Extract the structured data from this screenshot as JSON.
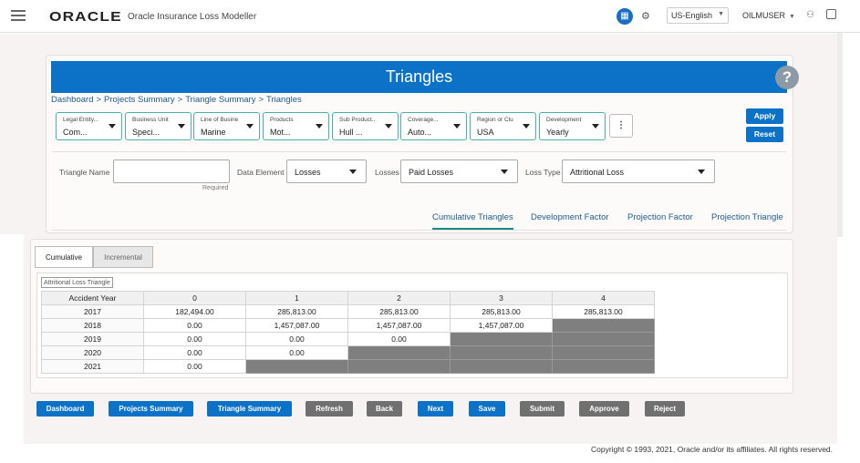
{
  "header": {
    "logo": "ORACLE",
    "app_name": "Oracle Insurance Loss Modeller",
    "language": "US-English",
    "user": "OILMUSER"
  },
  "page": {
    "title": "Triangles",
    "help_glyph": "?",
    "breadcrumb": [
      "Dashboard",
      "Projects Summary",
      "Triangle Summary",
      "Triangles"
    ],
    "breadcrumb_sep": ">"
  },
  "filters": [
    {
      "label": "Legal Entity...",
      "value": "Com..."
    },
    {
      "label": "Business Unit",
      "value": "Speci..."
    },
    {
      "label": "Line of Busine",
      "value": "Marine"
    },
    {
      "label": "Products",
      "value": "Mot..."
    },
    {
      "label": "Sub Product..",
      "value": "Hull ..."
    },
    {
      "label": "Coverage...",
      "value": "Auto..."
    },
    {
      "label": "Region or Clu",
      "value": "USA"
    },
    {
      "label": "Development",
      "value": "Yearly"
    }
  ],
  "filter_actions": {
    "more": "⋮",
    "apply": "Apply",
    "reset": "Reset"
  },
  "form": {
    "triangle_name_label": "Triangle Name",
    "triangle_name_value": "",
    "required_text": "Required",
    "data_element_label": "Data Element",
    "data_element_value": "Losses",
    "losses_label": "Losses",
    "losses_value": "Paid Losses",
    "loss_type_label": "Loss Type",
    "loss_type_value": "Attritional Loss"
  },
  "tabs": [
    "Cumulative Triangles",
    "Development Factor",
    "Projection Factor",
    "Projection Triangle"
  ],
  "subtabs": [
    "Cumulative",
    "Incremental"
  ],
  "triangle": {
    "title": "Attritional Loss Triangle",
    "header": [
      "Accident Year",
      "0",
      "1",
      "2",
      "3",
      "4"
    ],
    "rows": [
      [
        "2017",
        "182,494.00",
        "285,813.00",
        "285,813.00",
        "285,813.00",
        "285,813.00"
      ],
      [
        "2018",
        "0.00",
        "1,457,087.00",
        "1,457,087.00",
        "1,457,087.00",
        ""
      ],
      [
        "2019",
        "0.00",
        "0.00",
        "0.00",
        "",
        ""
      ],
      [
        "2020",
        "0.00",
        "0.00",
        "",
        "",
        ""
      ],
      [
        "2021",
        "0.00",
        "",
        "",
        "",
        ""
      ]
    ]
  },
  "buttons": [
    "Dashboard",
    "Projects Summary",
    "Triangle Summary",
    "Refresh",
    "Back",
    "Next",
    "Save",
    "Submit",
    "Approve",
    "Reject"
  ],
  "footer": {
    "copyright": "Copyright © 1993, 2021, Oracle and/or its affiliates. All rights reserved."
  },
  "colors": {
    "primary": "#0b72c7",
    "chip_border": "#48b2ad",
    "tab_underline": "#1a8a83",
    "empty_cell": "#7f7f7f",
    "gray_button": "#707070"
  }
}
